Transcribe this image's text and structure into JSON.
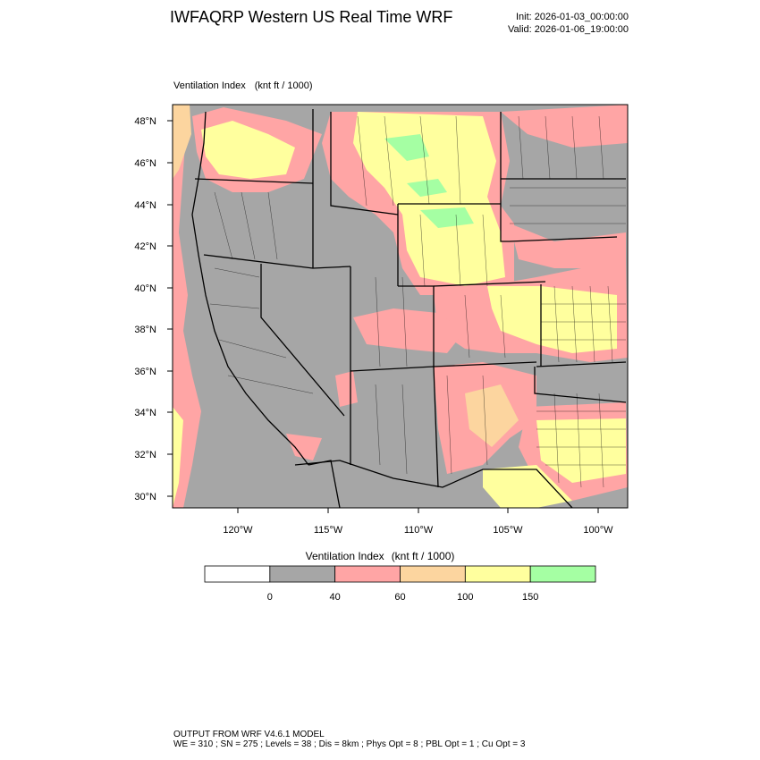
{
  "header": {
    "title": "IWFAQRP Western US Real Time WRF",
    "init": "Init: 2026-01-03_00:00:00",
    "valid": "Valid: 2026-01-06_19:00:00"
  },
  "map": {
    "field_label": "Ventilation Index",
    "field_units": "(knt ft / 1000)",
    "lat_labels": [
      "48°N",
      "46°N",
      "44°N",
      "42°N",
      "40°N",
      "38°N",
      "36°N",
      "34°N",
      "32°N",
      "30°N"
    ],
    "lon_labels": [
      "120°W",
      "115°W",
      "110°W",
      "105°W",
      "100°W"
    ],
    "colors": {
      "ocean_and_low": "#a6a6a6",
      "border": "#000000"
    }
  },
  "colorbar": {
    "title": "Ventilation Index",
    "units": "(knt ft / 1000)",
    "levels": [
      "0",
      "40",
      "60",
      "100",
      "150"
    ],
    "bins": [
      {
        "color": "#ffffff"
      },
      {
        "color": "#a6a6a6"
      },
      {
        "color": "#ffa5a5"
      },
      {
        "color": "#fcd59f"
      },
      {
        "color": "#ffff9e"
      },
      {
        "color": "#a5ffa3"
      }
    ]
  },
  "footer": {
    "line1": "OUTPUT FROM WRF V4.6.1 MODEL",
    "line2": "WE = 310 ; SN = 275 ; Levels = 38 ; Dis = 8km ; Phys Opt = 8 ; PBL Opt = 1 ; Cu Opt = 3"
  }
}
